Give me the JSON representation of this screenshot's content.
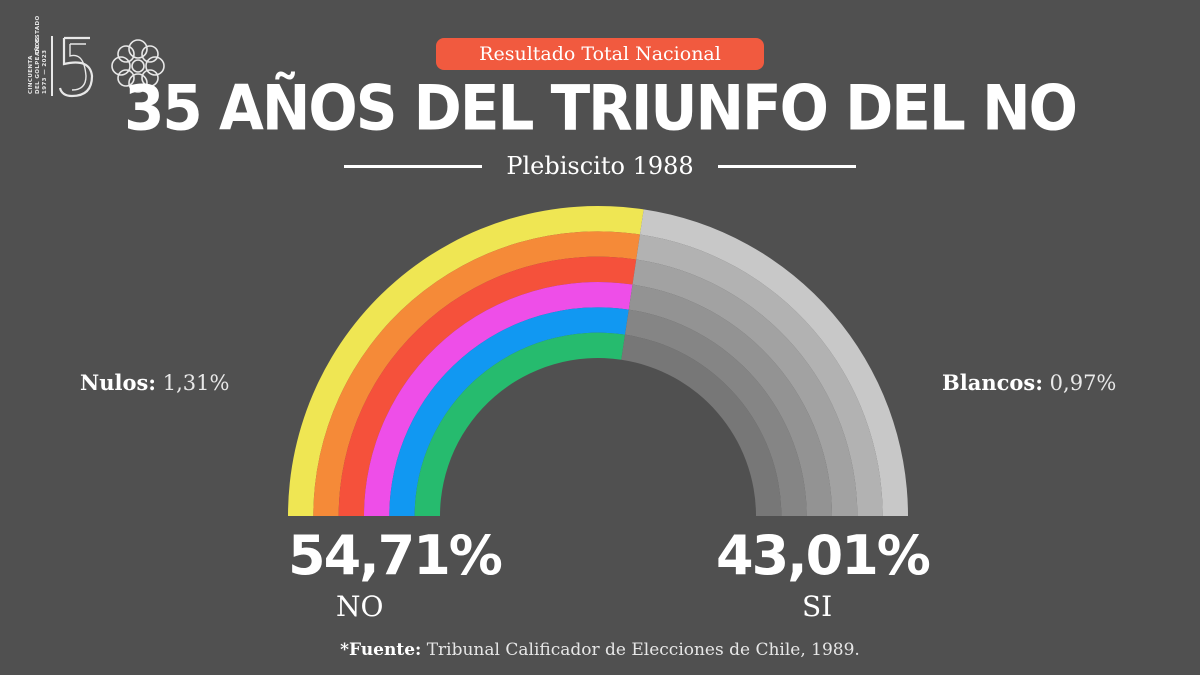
{
  "logo": {
    "number": "50",
    "lines": [
      "CINCUENTA",
      "DEL GOLPE DE ESTADO",
      "1973 — 2023",
      "AÑOS"
    ]
  },
  "badge": "Resultado Total Nacional",
  "title": "35 AÑOS DEL TRIUNFO DEL NO",
  "subtitle": "Plebiscito 1988",
  "nulos": {
    "label": "Nulos:",
    "value": "1,31%"
  },
  "blancos": {
    "label": "Blancos:",
    "value": "0,97%"
  },
  "no": {
    "percent": "54,71%",
    "label": "NO"
  },
  "si": {
    "percent": "43,01%",
    "label": "SI"
  },
  "source": {
    "label": "*Fuente:",
    "text": "Tribunal Calificador de Elecciones de Chile, 1989."
  },
  "colors": {
    "background": "#505050",
    "badge": "#f15a3f",
    "no_bands": [
      "#efe653",
      "#f58a38",
      "#f5513b",
      "#ee4ee8",
      "#1198f2",
      "#26bb6e"
    ],
    "si_bands": [
      "#c8c8c8",
      "#b2b2b2",
      "#a2a2a2",
      "#939393",
      "#858585",
      "#777777"
    ]
  },
  "chart_data": {
    "type": "pie",
    "variant": "semicircle",
    "categories": [
      "NO",
      "SI"
    ],
    "values": [
      54.71,
      43.01
    ]
  }
}
